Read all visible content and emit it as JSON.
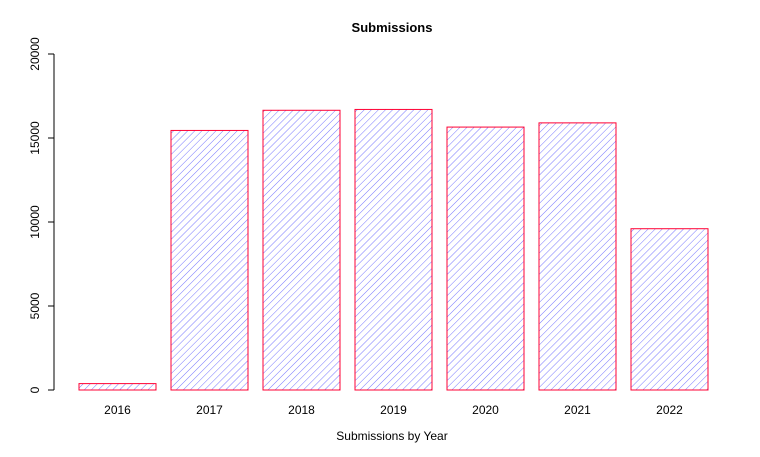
{
  "chart_data": {
    "type": "bar",
    "title": "Submissions",
    "xlabel": "Submissions by Year",
    "ylabel": "",
    "categories": [
      "2016",
      "2017",
      "2018",
      "2019",
      "2020",
      "2021",
      "2022"
    ],
    "values": [
      380,
      15450,
      16650,
      16700,
      15650,
      15900,
      9600
    ],
    "ylim": [
      0,
      20000
    ],
    "yticks": [
      0,
      5000,
      10000,
      15000,
      20000
    ],
    "grid": false,
    "legend": "none",
    "colors": {
      "border": "#ff0033",
      "hatch": "#5555ff"
    },
    "fill": "diagonal-hatch"
  }
}
